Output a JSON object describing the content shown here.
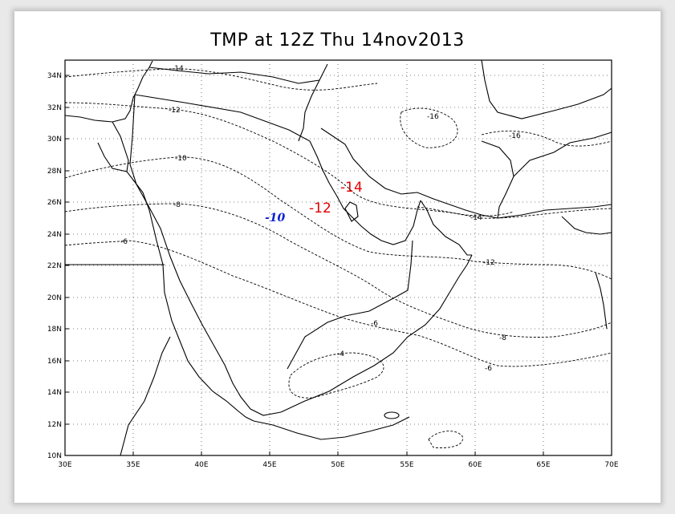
{
  "title": "TMP at 12Z Thu 14nov2013",
  "x_ticks": [
    "30E",
    "35E",
    "40E",
    "45E",
    "50E",
    "55E",
    "60E",
    "65E",
    "70E"
  ],
  "y_ticks": [
    "10N",
    "12N",
    "14N",
    "16N",
    "18N",
    "20N",
    "22N",
    "24N",
    "26N",
    "28N",
    "30N",
    "32N",
    "34N"
  ],
  "contour_labels": {
    "n14_top": "-14",
    "n12_top": "-12",
    "n10": "-10",
    "n8": "-8",
    "n6_left": "-6",
    "n16_a": "-16",
    "n16_b": "-16",
    "n14_right": "-14",
    "n12_right": "-12",
    "n8_right": "-8",
    "n6_right": "-6",
    "n6_mid": "-6",
    "n4": "-4"
  },
  "annotations": {
    "red_a": "-14",
    "red_b": "-12",
    "blue": "-10"
  },
  "colors": {
    "annotation_red": "#e00000",
    "annotation_blue": "#0a1fd0",
    "axes": "#000000",
    "grid": "#000000"
  }
}
